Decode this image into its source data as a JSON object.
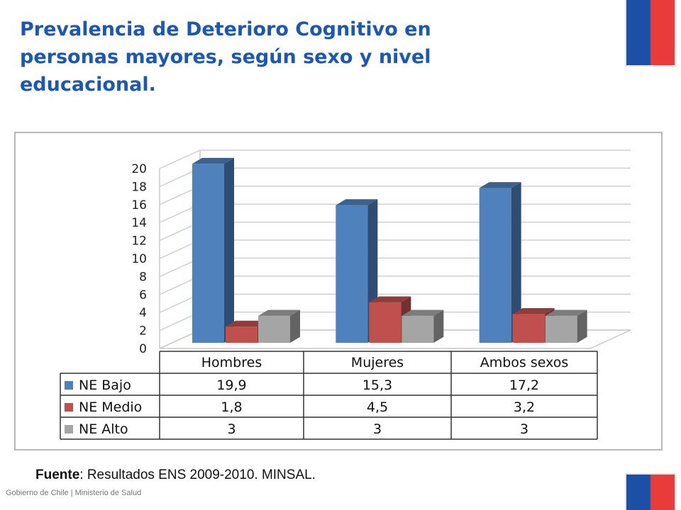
{
  "slide": {
    "title": "Prevalencia de Deterioro Cognitivo en personas mayores, según sexo y nivel educacional.",
    "source_label": "Fuente",
    "source_text": ": Resultados ENS 2009-2010. MINSAL.",
    "footer": "Gobierno de Chile | Ministerio de Salud"
  },
  "colors": {
    "title": "#1a58b3",
    "flag_blue": "#1b4fa8",
    "flag_red": "#ea3b3b"
  },
  "chart_data": {
    "type": "bar",
    "style": "3d clustered column with data table",
    "title": "",
    "xlabel": "",
    "ylabel": "",
    "categories": [
      "Hombres",
      "Mujeres",
      "Ambos sexos"
    ],
    "series": [
      {
        "name": "NE Bajo",
        "values": [
          19.9,
          15.3,
          17.2
        ],
        "table_values": [
          "19,9",
          "15,3",
          "17,2"
        ],
        "color": "#4f81bd"
      },
      {
        "name": "NE Medio",
        "values": [
          1.8,
          4.5,
          3.2
        ],
        "table_values": [
          "1,8",
          "4,5",
          "3,2"
        ],
        "color": "#c0504d"
      },
      {
        "name": "NE Alto",
        "values": [
          3,
          3,
          3
        ],
        "table_values": [
          "3",
          "3",
          "3"
        ],
        "color": "#a5a5a5"
      }
    ],
    "y_ticks": [
      "0",
      "2",
      "4",
      "6",
      "8",
      "10",
      "12",
      "14",
      "16",
      "18",
      "20"
    ],
    "ylim": [
      0,
      20
    ],
    "grid": true,
    "legend": "in data table"
  }
}
